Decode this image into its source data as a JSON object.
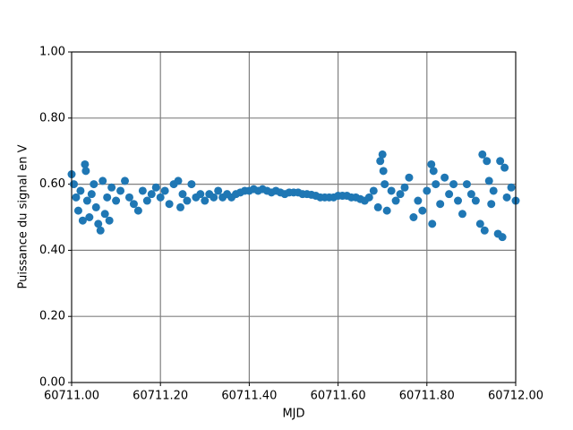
{
  "chart_data": {
    "type": "scatter",
    "xlabel": "MJD",
    "ylabel": "Puissance du signal en V",
    "color": "#1f77b4",
    "grid": true,
    "xlim": [
      60711.0,
      60712.0
    ],
    "ylim": [
      0.0,
      1.0
    ],
    "xticks": [
      {
        "value": 60711.0,
        "label": "60711.00"
      },
      {
        "value": 60711.2,
        "label": "60711.20"
      },
      {
        "value": 60711.4,
        "label": "60711.40"
      },
      {
        "value": 60711.6,
        "label": "60711.60"
      },
      {
        "value": 60711.8,
        "label": "60711.80"
      },
      {
        "value": 60712.0,
        "label": "60712.00"
      }
    ],
    "yticks": [
      {
        "value": 0.0,
        "label": "0.00"
      },
      {
        "value": 0.2,
        "label": "0.20"
      },
      {
        "value": 0.4,
        "label": "0.40"
      },
      {
        "value": 0.6,
        "label": "0.60"
      },
      {
        "value": 0.8,
        "label": "0.80"
      },
      {
        "value": 1.0,
        "label": "1.00"
      }
    ],
    "x": [
      60711.0,
      60711.005,
      60711.01,
      60711.015,
      60711.02,
      60711.025,
      60711.03,
      60711.032,
      60711.035,
      60711.04,
      60711.045,
      60711.05,
      60711.055,
      60711.06,
      60711.065,
      60711.07,
      60711.075,
      60711.08,
      60711.085,
      60711.09,
      60711.1,
      60711.11,
      60711.12,
      60711.13,
      60711.14,
      60711.15,
      60711.16,
      60711.17,
      60711.18,
      60711.19,
      60711.2,
      60711.21,
      60711.22,
      60711.23,
      60711.24,
      60711.245,
      60711.25,
      60711.26,
      60711.27,
      60711.28,
      60711.29,
      60711.3,
      60711.31,
      60711.32,
      60711.33,
      60711.34,
      60711.35,
      60711.36,
      60711.37,
      60711.38,
      60711.39,
      60711.4,
      60711.41,
      60711.42,
      60711.43,
      60711.44,
      60711.45,
      60711.46,
      60711.47,
      60711.48,
      60711.49,
      60711.5,
      60711.51,
      60711.52,
      60711.53,
      60711.54,
      60711.55,
      60711.56,
      60711.57,
      60711.58,
      60711.59,
      60711.6,
      60711.61,
      60711.62,
      60711.63,
      60711.64,
      60711.65,
      60711.66,
      60711.67,
      60711.68,
      60711.69,
      60711.695,
      60711.7,
      60711.702,
      60711.705,
      60711.71,
      60711.72,
      60711.73,
      60711.74,
      60711.75,
      60711.76,
      60711.77,
      60711.78,
      60711.79,
      60711.8,
      60711.81,
      60711.812,
      60711.815,
      60711.82,
      60711.83,
      60711.84,
      60711.85,
      60711.86,
      60711.87,
      60711.88,
      60711.89,
      60711.9,
      60711.91,
      60711.92,
      60711.925,
      60711.93,
      60711.935,
      60711.94,
      60711.945,
      60711.95,
      60711.96,
      60711.965,
      60711.97,
      60711.975,
      60711.98,
      60711.99,
      60712.0
    ],
    "values": [
      0.63,
      0.6,
      0.56,
      0.52,
      0.58,
      0.49,
      0.66,
      0.64,
      0.55,
      0.5,
      0.57,
      0.6,
      0.53,
      0.48,
      0.46,
      0.61,
      0.51,
      0.56,
      0.49,
      0.59,
      0.55,
      0.58,
      0.61,
      0.56,
      0.54,
      0.52,
      0.58,
      0.55,
      0.57,
      0.59,
      0.56,
      0.58,
      0.54,
      0.6,
      0.61,
      0.53,
      0.57,
      0.55,
      0.6,
      0.56,
      0.57,
      0.55,
      0.57,
      0.56,
      0.58,
      0.56,
      0.57,
      0.56,
      0.57,
      0.575,
      0.58,
      0.58,
      0.585,
      0.58,
      0.585,
      0.58,
      0.575,
      0.58,
      0.575,
      0.57,
      0.575,
      0.575,
      0.575,
      0.57,
      0.57,
      0.568,
      0.565,
      0.56,
      0.56,
      0.56,
      0.56,
      0.565,
      0.565,
      0.565,
      0.56,
      0.56,
      0.555,
      0.55,
      0.56,
      0.58,
      0.53,
      0.67,
      0.69,
      0.64,
      0.6,
      0.52,
      0.58,
      0.55,
      0.57,
      0.59,
      0.62,
      0.5,
      0.55,
      0.52,
      0.58,
      0.66,
      0.48,
      0.64,
      0.6,
      0.54,
      0.62,
      0.57,
      0.6,
      0.55,
      0.51,
      0.6,
      0.57,
      0.55,
      0.48,
      0.69,
      0.46,
      0.67,
      0.61,
      0.54,
      0.58,
      0.45,
      0.67,
      0.44,
      0.65,
      0.56,
      0.59,
      0.55
    ]
  }
}
